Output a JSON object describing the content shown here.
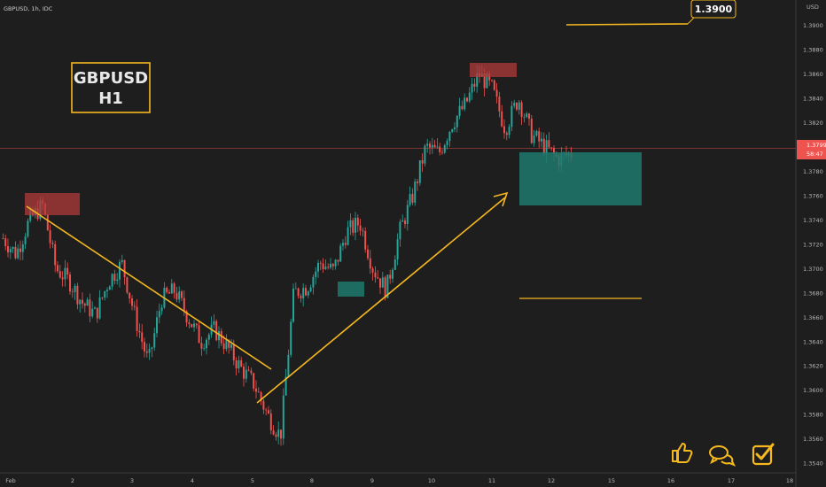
{
  "header": {
    "symbol_line": "GBPUSD, 1h, IDC"
  },
  "watermark": {
    "line1": "GBPUSD",
    "line2": "H1"
  },
  "target_label": "1.3900",
  "current_price": {
    "value": "1.3799",
    "countdown": "58:47"
  },
  "reactions": [
    {
      "name": "thumbs-up-icon"
    },
    {
      "name": "comments-icon"
    },
    {
      "name": "checkbox-icon"
    }
  ],
  "colors": {
    "background": "#1e1e1e",
    "up": "#26a69a",
    "down": "#ef5350",
    "annotation": "#f5b81e",
    "supply_zone": "#b0393a",
    "demand_zone": "#1e7a6d"
  },
  "chart_data": {
    "type": "candlestick",
    "title": "GBPUSD, 1h, IDC",
    "ylabel": "USD",
    "ylim": [
      1.3535,
      1.3915
    ],
    "y_ticks": [
      "1.3900",
      "1.3880",
      "1.3860",
      "1.3840",
      "1.3820",
      "1.3800",
      "1.3780",
      "1.3760",
      "1.3740",
      "1.3720",
      "1.3700",
      "1.3680",
      "1.3660",
      "1.3640",
      "1.3620",
      "1.3600",
      "1.3580",
      "1.3560",
      "1.3540"
    ],
    "x_ticks": [
      "Feb",
      "2",
      "3",
      "4",
      "5",
      "8",
      "9",
      "10",
      "11",
      "12",
      "15",
      "16",
      "17",
      "18"
    ],
    "price_path": [
      [
        1.3725,
        1.3712
      ],
      [
        1.374,
        1.3752
      ],
      [
        1.37,
        1.369
      ],
      [
        1.3672,
        1.3662
      ],
      [
        1.369,
        1.3704
      ],
      [
        1.366,
        1.3622
      ],
      [
        1.3675,
        1.3682
      ],
      [
        1.366,
        1.364
      ],
      [
        1.365,
        1.3635
      ],
      [
        1.3618,
        1.3605
      ],
      [
        1.358,
        1.3562
      ],
      [
        1.368,
        1.3685
      ],
      [
        1.3705,
        1.3698
      ],
      [
        1.373,
        1.3738
      ],
      [
        1.37,
        1.3682
      ],
      [
        1.373,
        1.376
      ],
      [
        1.38,
        1.3795
      ],
      [
        1.382,
        1.3835
      ],
      [
        1.386,
        1.3848
      ],
      [
        1.3815,
        1.384
      ],
      [
        1.381,
        1.38
      ],
      [
        1.379,
        1.3795
      ]
    ],
    "series": [
      {
        "name": "GBPUSD",
        "last": 1.3799
      }
    ],
    "annotations": {
      "supply_zones": [
        {
          "x_from": "Feb 1.1",
          "x_to": "Feb 2.1",
          "y_from": 1.3745,
          "y_to": 1.3762
        },
        {
          "x_from": "Feb 11.0",
          "x_to": "Feb 11.4",
          "y_from": 1.3858,
          "y_to": 1.3868
        }
      ],
      "demand_zones": [
        {
          "x_from": "Feb 8.4",
          "x_to": "Feb 8.9",
          "y_from": 1.3673,
          "y_to": 1.3684
        },
        {
          "x_from": "Feb 12.0",
          "x_to": "Feb 15.5",
          "y_from": 1.3752,
          "y_to": 1.3792
        }
      ],
      "trendline": {
        "from": [
          "Feb 1.1",
          1.3754
        ],
        "to": [
          "Feb 5.3",
          1.3617
        ]
      },
      "arrow": {
        "from": [
          "Feb 5.1",
          1.359
        ],
        "to": [
          "Feb 11.7",
          1.3762
        ]
      },
      "target_line": 1.39,
      "lower_level": 1.3674
    }
  }
}
